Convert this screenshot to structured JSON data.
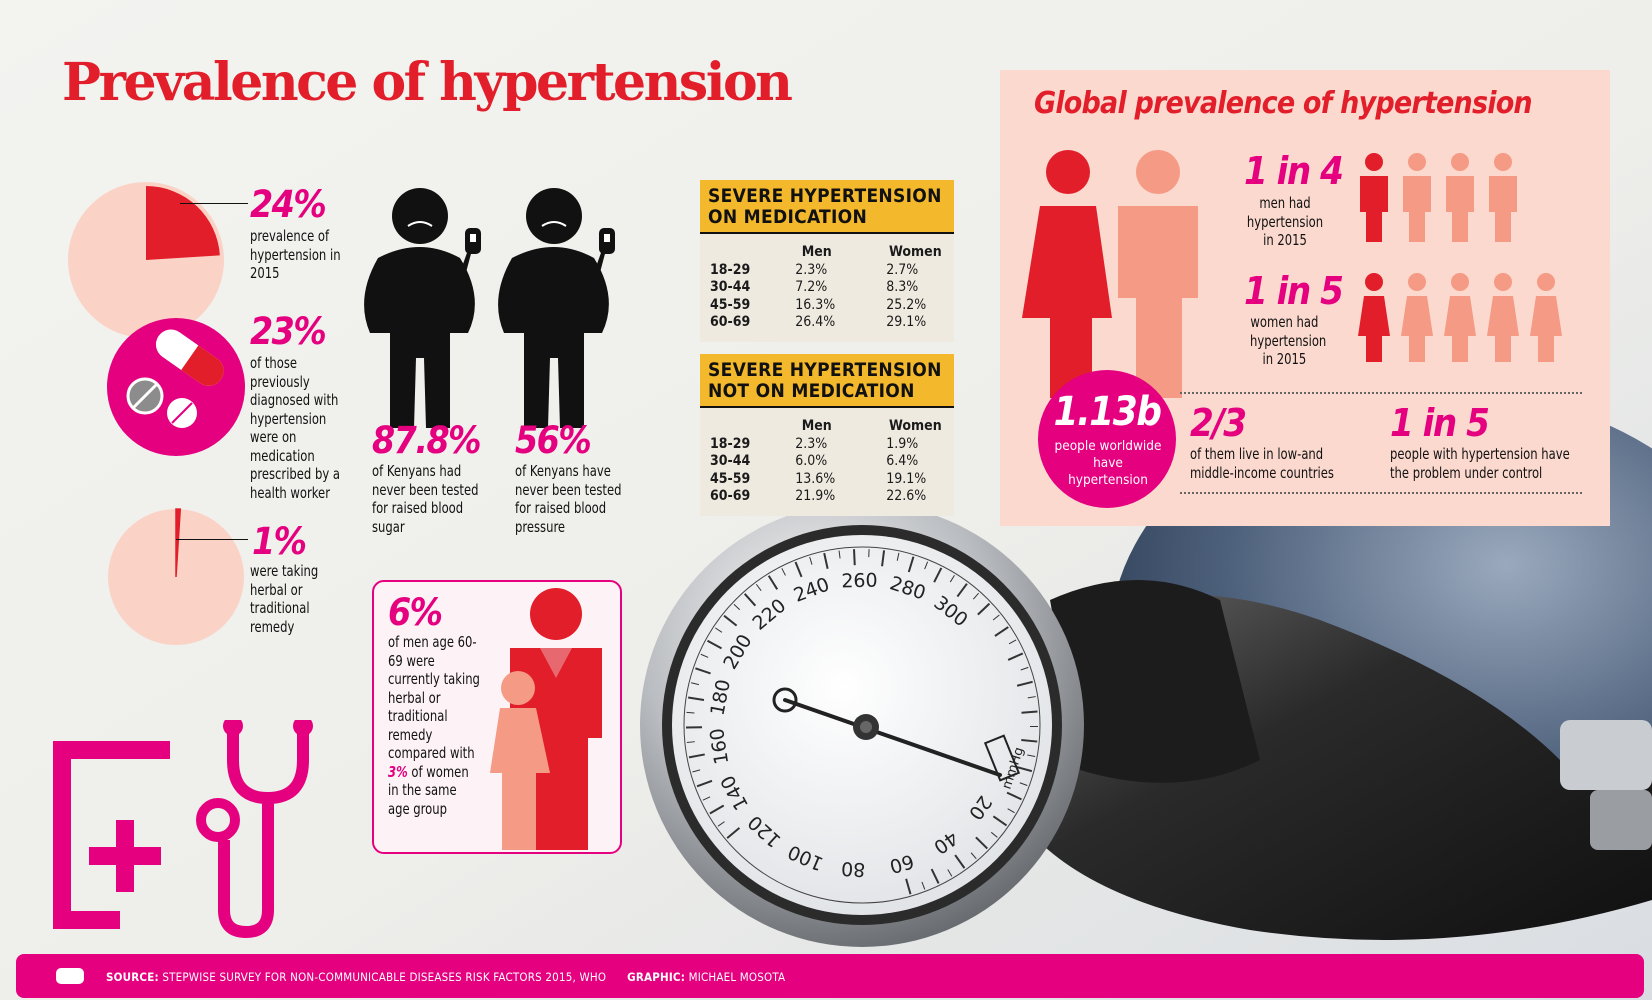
{
  "title": "Prevalence of hypertension",
  "stat_24": {
    "value": "24%",
    "text": "prevalence of hypertension in 2015"
  },
  "stat_23": {
    "value": "23%",
    "text": "of those previously diagnosed with hypertension were on medication prescribed by a health worker"
  },
  "stat_1": {
    "value": "1%",
    "text": "were taking herbal or traditional remedy"
  },
  "stat_878": {
    "value": "87.8%",
    "text": "of Kenyans had never been tested for raised blood sugar"
  },
  "stat_56": {
    "value": "56%",
    "text": "of Kenyans have never been tested for raised blood pressure"
  },
  "stat_6": {
    "value": "6%",
    "text_pre": "of men age 60-69 were currently taking herbal or traditional remedy compared with",
    "value2": "3%",
    "text_post": "of women in the same age group"
  },
  "on_med": {
    "title": "SEVERE HYPERTENSION ON MEDICATION",
    "headers": [
      "Men",
      "Women"
    ],
    "rows": [
      {
        "age": "18-29",
        "men": "2.3%",
        "women": "2.7%"
      },
      {
        "age": "30-44",
        "men": "7.2%",
        "women": "8.3%"
      },
      {
        "age": "45-59",
        "men": "16.3%",
        "women": "25.2%"
      },
      {
        "age": "60-69",
        "men": "26.4%",
        "women": "29.1%"
      }
    ]
  },
  "not_on_med": {
    "title": "SEVERE HYPERTENSION NOT ON MEDICATION",
    "headers": [
      "Men",
      "Women"
    ],
    "rows": [
      {
        "age": "18-29",
        "men": "2.3%",
        "women": "1.9%"
      },
      {
        "age": "30-44",
        "men": "6.0%",
        "women": "6.4%"
      },
      {
        "age": "45-59",
        "men": "13.6%",
        "women": "19.1%"
      },
      {
        "age": "60-69",
        "men": "21.9%",
        "women": "22.6%"
      }
    ]
  },
  "global": {
    "title": "Global prevalence of hypertension",
    "men": {
      "value": "1 in 4",
      "text": "men had hypertension in 2015"
    },
    "women": {
      "value": "1 in 5",
      "text": "women had hypertension in 2015"
    },
    "world": {
      "value": "1.13b",
      "text": "people worldwide have hypertension"
    },
    "low_income": {
      "value": "2/3",
      "text": "of them live in low-and middle-income countries"
    },
    "control": {
      "value": "1 in 5",
      "text": "people with hypertension have the problem under control"
    }
  },
  "gauge": {
    "labels": [
      "20",
      "40",
      "60",
      "80",
      "100",
      "120",
      "140",
      "160",
      "180",
      "200",
      "220",
      "240",
      "260",
      "280",
      "300"
    ],
    "unit": "mmHg"
  },
  "footer": {
    "source_label": "SOURCE:",
    "source_text": "STEPWISE SURVEY FOR NON-COMMUNICABLE DISEASES RISK FACTORS 2015, WHO",
    "graphic_label": "GRAPHIC:",
    "graphic_text": "MICHAEL MOSOTA"
  },
  "colors": {
    "red": "#e21e2a",
    "magenta": "#e4007f",
    "salmon": "#f59a84",
    "peach": "#fbd9cf",
    "amber": "#f3b82b"
  },
  "pie_values": {
    "prevalence": 24,
    "herbal": 1
  }
}
